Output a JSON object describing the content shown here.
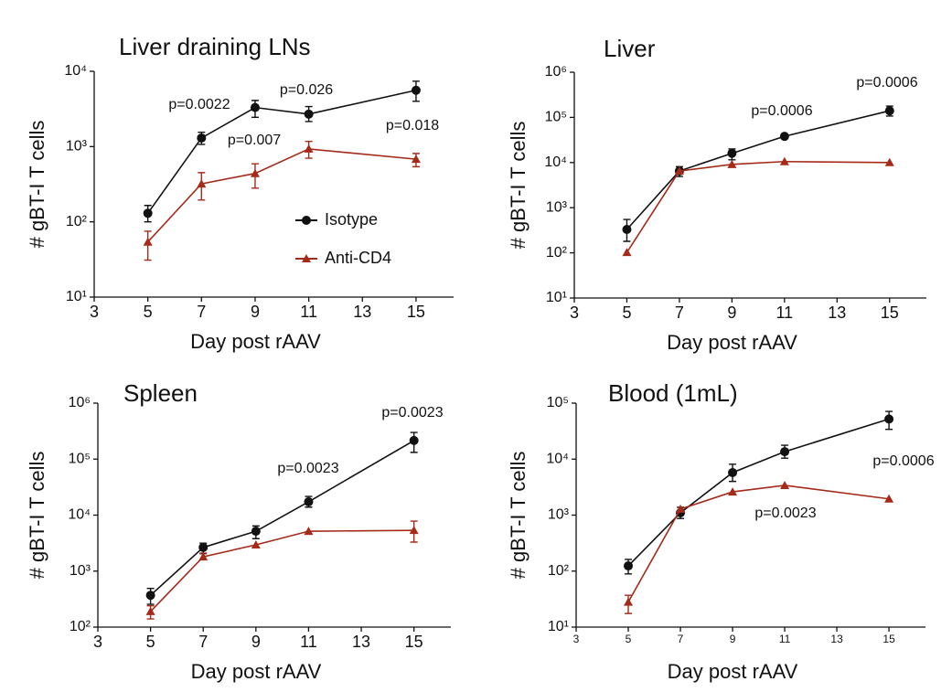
{
  "chart_data": [
    {
      "type": "line",
      "title": "Liver draining LNs",
      "x_label": "Day post rAAV",
      "y_label": "# gBT-I  T cells",
      "log_y": true,
      "legend": true,
      "x": [
        5,
        7,
        9,
        11,
        15
      ],
      "xlim": [
        3,
        16.4
      ],
      "xticks": [
        3,
        5,
        7,
        9,
        11,
        13,
        15
      ],
      "ylim": [
        10,
        10000
      ],
      "yticks": [
        {
          "value": 10,
          "label": "10¹"
        },
        {
          "value": 100,
          "label": "10²"
        },
        {
          "value": 1000,
          "label": "10³"
        },
        {
          "value": 10000,
          "label": "10⁴"
        }
      ],
      "series": [
        {
          "name": "Isotype",
          "color": "#111111",
          "marker": "circle",
          "values": [
            130,
            1300,
            3300,
            2700,
            5600
          ],
          "lower": [
            100,
            1070,
            2450,
            2150,
            4000
          ],
          "upper": [
            165,
            1550,
            4100,
            3400,
            7400
          ]
        },
        {
          "name": "Anti-CD4",
          "color": "#a52a1a",
          "marker": "triangle",
          "values": [
            54,
            320,
            440,
            930,
            680
          ],
          "lower": [
            31,
            195,
            280,
            700,
            540
          ],
          "upper": [
            75,
            450,
            590,
            1170,
            810
          ]
        }
      ],
      "annotations": [
        "p=0.0022",
        "p=0.026",
        "p=0.007",
        "p=0.018"
      ]
    },
    {
      "type": "line",
      "title": "Liver",
      "x_label": "Day post rAAV",
      "y_label": "# gBT-I  T cells",
      "log_y": true,
      "x": [
        5,
        7,
        9,
        11,
        15
      ],
      "xlim": [
        3,
        16.4
      ],
      "xticks": [
        3,
        5,
        7,
        9,
        11,
        13,
        15
      ],
      "ylim": [
        10,
        1000000
      ],
      "yticks": [
        {
          "value": 10,
          "label": "10¹"
        },
        {
          "value": 100,
          "label": "10²"
        },
        {
          "value": 1000,
          "label": "10³"
        },
        {
          "value": 10000,
          "label": "10⁴"
        },
        {
          "value": 100000,
          "label": "10⁵"
        },
        {
          "value": 1000000,
          "label": "10⁶"
        }
      ],
      "series": [
        {
          "color": "#111111",
          "marker": "circle",
          "values": [
            330,
            6500,
            16000,
            38000,
            140000
          ],
          "lower": [
            180,
            4900,
            11500,
            null,
            107000
          ],
          "upper": [
            550,
            8100,
            20000,
            null,
            178000
          ]
        },
        {
          "color": "#a52a1a",
          "marker": "triangle",
          "values": [
            102,
            6500,
            9100,
            10500,
            10000
          ]
        }
      ],
      "annotations": [
        "p=0.0006",
        "p=0.0006"
      ]
    },
    {
      "type": "line",
      "title": "Spleen",
      "x_label": "Day post rAAV",
      "y_label": "# gBT-I  T cells",
      "log_y": true,
      "x": [
        5,
        7,
        9,
        11,
        15
      ],
      "xlim": [
        3,
        16.4
      ],
      "xticks": [
        3,
        5,
        7,
        9,
        11,
        13,
        15
      ],
      "ylim": [
        100,
        1000000
      ],
      "yticks": [
        {
          "value": 100,
          "label": "10²"
        },
        {
          "value": 1000,
          "label": "10³"
        },
        {
          "value": 10000,
          "label": "10⁴"
        },
        {
          "value": 100000,
          "label": "10⁵"
        },
        {
          "value": 1000000,
          "label": "10⁶"
        }
      ],
      "series": [
        {
          "color": "#111111",
          "marker": "circle",
          "values": [
            370,
            2650,
            5150,
            17300,
            215000
          ],
          "lower": [
            255,
            2050,
            3800,
            13900,
            132000
          ],
          "upper": [
            490,
            3150,
            6400,
            21600,
            300000
          ]
        },
        {
          "color": "#a52a1a",
          "marker": "triangle",
          "values": [
            190,
            1800,
            2950,
            5150,
            5350
          ],
          "lower": [
            140,
            1620,
            null,
            null,
            3300
          ],
          "upper": [
            240,
            2100,
            null,
            null,
            7800
          ]
        }
      ],
      "annotations": [
        "p=0.0023",
        "p=0.0023"
      ]
    },
    {
      "type": "line",
      "title": "Blood (1mL)",
      "x_label": "Day post rAAV",
      "y_label": "# gBT-I  T cells",
      "log_y": true,
      "x": [
        5,
        7,
        9,
        11,
        15
      ],
      "xlim": [
        3,
        16.4
      ],
      "xticks": [
        3,
        5,
        7,
        9,
        11,
        13,
        15
      ],
      "ylim": [
        10,
        100000
      ],
      "yticks": [
        {
          "value": 10,
          "label": "10¹"
        },
        {
          "value": 100,
          "label": "10²"
        },
        {
          "value": 1000,
          "label": "10³"
        },
        {
          "value": 10000,
          "label": "10⁴"
        },
        {
          "value": 100000,
          "label": "10⁵"
        }
      ],
      "series": [
        {
          "color": "#111111",
          "marker": "circle",
          "values": [
            124,
            1100,
            5750,
            13600,
            52000
          ],
          "lower": [
            89,
            870,
            4000,
            10400,
            34000
          ],
          "upper": [
            162,
            1380,
            8100,
            17700,
            71000
          ]
        },
        {
          "color": "#a52a1a",
          "marker": "triangle",
          "values": [
            28,
            1280,
            2600,
            3400,
            1950
          ],
          "lower": [
            17.5,
            null,
            null,
            null,
            null
          ],
          "upper": [
            37,
            null,
            null,
            null,
            null
          ]
        }
      ],
      "annotations": [
        "p=0.0023",
        "p=0.0006"
      ]
    }
  ]
}
